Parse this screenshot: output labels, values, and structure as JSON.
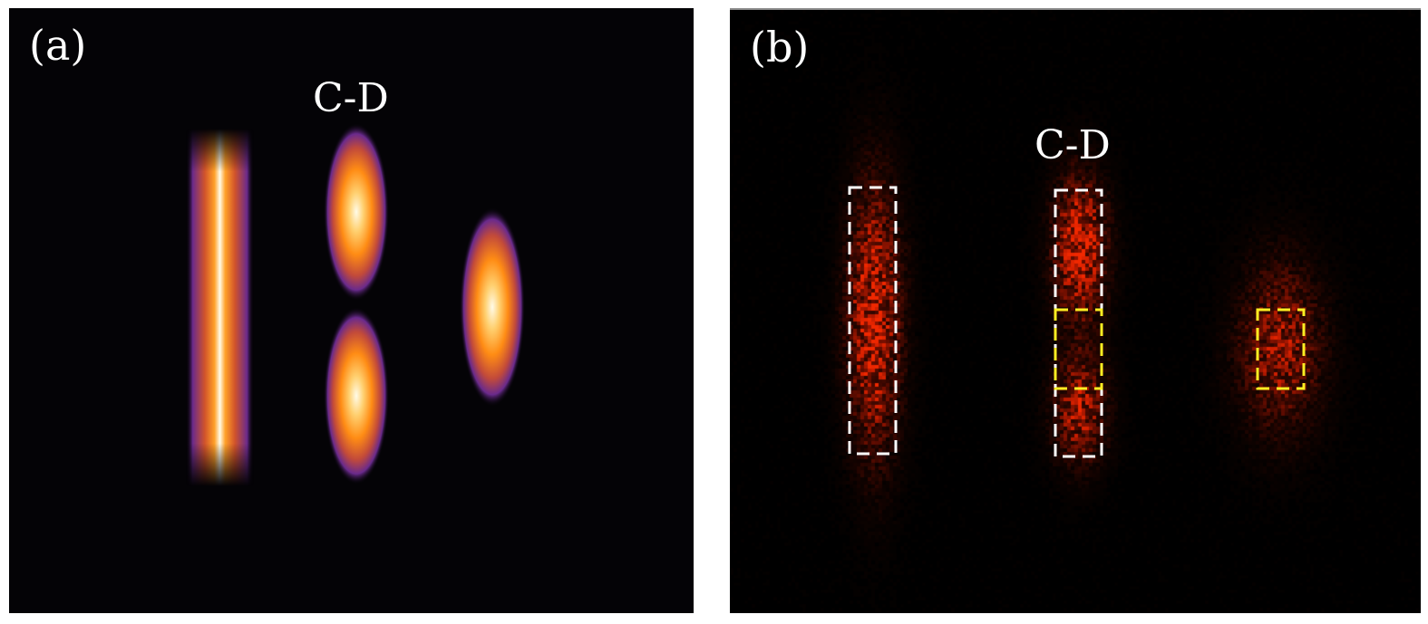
{
  "panels": [
    {
      "label": "(a)",
      "title": "C-D",
      "image": "simulated-intensity-pattern"
    },
    {
      "label": "(b)",
      "title": "C-D",
      "image": "measured-intensity-pattern"
    }
  ],
  "colors": {
    "background_a": "#040306",
    "background_b": "#000000",
    "lobe_core": "#fffbe0",
    "lobe_mid": "#ff9a1a",
    "lobe_edge": "#6a2a8c",
    "measured_signal": "#c41a0a",
    "box_white": "#ffffff",
    "box_yellow": "#ffee22"
  }
}
